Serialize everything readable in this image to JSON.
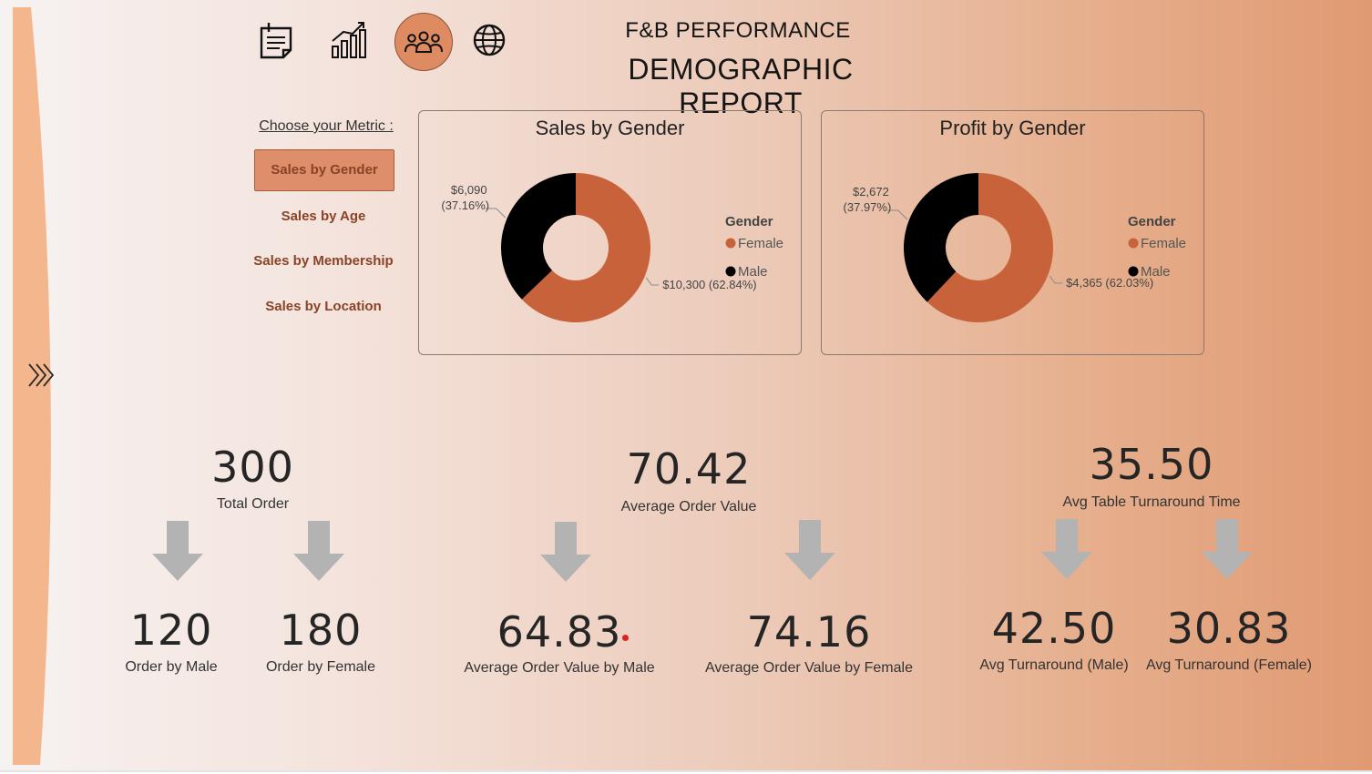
{
  "header": {
    "title_top": "F&B PERFORMANCE",
    "title_main": "DEMOGRAPHIC REPORT"
  },
  "nav_icons": [
    "report-icon",
    "growth-chart-icon",
    "people-icon",
    "globe-icon"
  ],
  "metric_selector": {
    "heading": "Choose your Metric :",
    "options": [
      "Sales by Gender",
      "Sales by Age",
      "Sales by Membership",
      "Sales by Location"
    ],
    "selected": "Sales by Gender"
  },
  "colors": {
    "female": "#c8623a",
    "male": "#000000",
    "accent": "#de8e6a"
  },
  "chart_data": [
    {
      "type": "pie",
      "title": "Sales by Gender",
      "legend_title": "Gender",
      "categories": [
        "Female",
        "Male"
      ],
      "values": [
        10300,
        6090
      ],
      "data_labels": [
        "$10,300 (62.84%)",
        "$6,090 (37.16%)"
      ],
      "legend_position": "right"
    },
    {
      "type": "pie",
      "title": "Profit by Gender",
      "legend_title": "Gender",
      "categories": [
        "Female",
        "Male"
      ],
      "values": [
        4365,
        2672
      ],
      "data_labels": [
        "$4,365 (62.03%)",
        "$2,672 (37.97%)"
      ],
      "legend_position": "right"
    }
  ],
  "kpis": {
    "total_order": {
      "value": "300",
      "label": "Total Order"
    },
    "order_male": {
      "value": "120",
      "label": "Order by Male"
    },
    "order_female": {
      "value": "180",
      "label": "Order by Female"
    },
    "aov": {
      "value": "70.42",
      "label": "Average Order Value"
    },
    "aov_male": {
      "value": "64.83",
      "label": "Average Order Value by Male"
    },
    "aov_female": {
      "value": "74.16",
      "label": "Average Order Value by Female"
    },
    "turnaround": {
      "value": "35.50",
      "label": "Avg Table Turnaround Time"
    },
    "turnaround_male": {
      "value": "42.50",
      "label": "Avg Turnaround (Male)"
    },
    "turnaround_female": {
      "value": "30.83",
      "label": "Avg Turnaround (Female)"
    }
  }
}
